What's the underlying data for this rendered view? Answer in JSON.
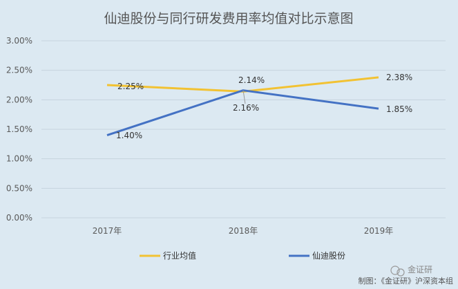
{
  "chart_data": {
    "type": "line",
    "title": "仙迪股份与同行研发费用率均值对比示意图",
    "categories": [
      "2017年",
      "2018年",
      "2019年"
    ],
    "y_ticks": [
      "0.00%",
      "0.50%",
      "1.00%",
      "1.50%",
      "2.00%",
      "2.50%",
      "3.00%"
    ],
    "ylim": [
      0,
      3.0
    ],
    "grid": true,
    "legend_position": "bottom",
    "series": [
      {
        "name": "行业均值",
        "color": "#f2c232",
        "values": [
          2.25,
          2.14,
          2.38
        ],
        "labels": [
          "2.25%",
          "2.14%",
          "2.38%"
        ]
      },
      {
        "name": "仙迪股份",
        "color": "#4472c4",
        "values": [
          1.4,
          2.16,
          1.85
        ],
        "labels": [
          "1.40%",
          "2.16%",
          "1.85%"
        ]
      }
    ]
  },
  "watermark": "金证研",
  "footer": "制图：《金证研》沪深资本组"
}
